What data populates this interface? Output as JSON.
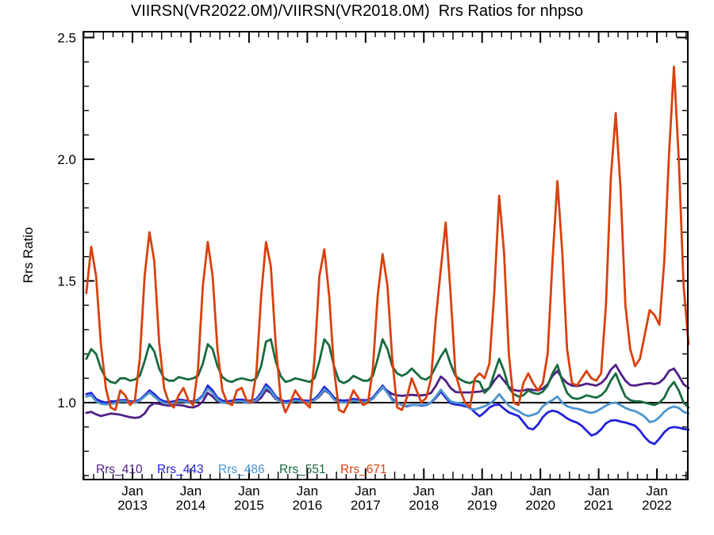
{
  "chart_data": {
    "type": "line",
    "title": "VIIRSN(VR2022.0M)/VIIRSN(VR2018.0M)  Rrs Ratios for nhpso",
    "ylabel": "Rrs Ratio",
    "xlabel": "",
    "background_color": "#ffffff",
    "axis_color": "#000000",
    "reference_line_y": 1.0,
    "xlim": [
      2012.156,
      2022.53
    ],
    "ylim": [
      0.684,
      2.524
    ],
    "y_ticks": [
      1.0,
      1.5,
      2.0,
      2.5
    ],
    "y_tick_labels": [
      "1.0",
      "1.5",
      "2.0",
      "2.5"
    ],
    "y_minor_step": 0.1,
    "x_ticks": [
      {
        "month": "Jan",
        "year": "2013",
        "t": 2013
      },
      {
        "month": "Jan",
        "year": "2014",
        "t": 2014
      },
      {
        "month": "Jan",
        "year": "2015",
        "t": 2015
      },
      {
        "month": "Jan",
        "year": "2016",
        "t": 2016
      },
      {
        "month": "Jan",
        "year": "2017",
        "t": 2017
      },
      {
        "month": "Jan",
        "year": "2018",
        "t": 2018
      },
      {
        "month": "Jan",
        "year": "2019",
        "t": 2019
      },
      {
        "month": "Jan",
        "year": "2020",
        "t": 2020
      },
      {
        "month": "Jan",
        "year": "2021",
        "t": 2021
      },
      {
        "month": "Jan",
        "year": "2022",
        "t": 2022
      }
    ],
    "legend": {
      "position": "bottom-left-inside",
      "labels": [
        "Rrs_410",
        "Rrs_443",
        "Rrs_486",
        "Rrs_551",
        "Rrs_671"
      ]
    },
    "x": [
      2012.208,
      2012.292,
      2012.375,
      2012.458,
      2012.542,
      2012.625,
      2012.708,
      2012.792,
      2012.875,
      2012.958,
      2013.042,
      2013.125,
      2013.208,
      2013.292,
      2013.375,
      2013.458,
      2013.542,
      2013.625,
      2013.708,
      2013.792,
      2013.875,
      2013.958,
      2014.042,
      2014.125,
      2014.208,
      2014.292,
      2014.375,
      2014.458,
      2014.542,
      2014.625,
      2014.708,
      2014.792,
      2014.875,
      2014.958,
      2015.042,
      2015.125,
      2015.208,
      2015.292,
      2015.375,
      2015.458,
      2015.542,
      2015.625,
      2015.708,
      2015.792,
      2015.875,
      2015.958,
      2016.042,
      2016.125,
      2016.208,
      2016.292,
      2016.375,
      2016.458,
      2016.542,
      2016.625,
      2016.708,
      2016.792,
      2016.875,
      2016.958,
      2017.042,
      2017.125,
      2017.208,
      2017.292,
      2017.375,
      2017.458,
      2017.542,
      2017.625,
      2017.708,
      2017.792,
      2017.875,
      2017.958,
      2018.042,
      2018.125,
      2018.208,
      2018.292,
      2018.375,
      2018.458,
      2018.542,
      2018.625,
      2018.708,
      2018.792,
      2018.875,
      2018.958,
      2019.042,
      2019.125,
      2019.208,
      2019.292,
      2019.375,
      2019.458,
      2019.542,
      2019.625,
      2019.708,
      2019.792,
      2019.875,
      2019.958,
      2020.042,
      2020.125,
      2020.208,
      2020.292,
      2020.375,
      2020.458,
      2020.542,
      2020.625,
      2020.708,
      2020.792,
      2020.875,
      2020.958,
      2021.042,
      2021.125,
      2021.208,
      2021.292,
      2021.375,
      2021.458,
      2021.542,
      2021.625,
      2021.708,
      2021.792,
      2021.875,
      2021.958,
      2022.042,
      2022.125,
      2022.208,
      2022.292,
      2022.375,
      2022.458,
      2022.542
    ],
    "series": [
      {
        "name": "Rrs_410",
        "color": "#4f2086",
        "values": [
          0.958,
          0.962,
          0.952,
          0.945,
          0.95,
          0.955,
          0.953,
          0.95,
          0.945,
          0.94,
          0.937,
          0.94,
          0.955,
          0.985,
          0.998,
          0.995,
          0.99,
          0.988,
          0.99,
          0.99,
          0.988,
          0.982,
          0.98,
          0.988,
          1.005,
          1.04,
          1.025,
          1.005,
          1.0,
          1.0,
          1.002,
          1.005,
          1.005,
          1.0,
          1.0,
          1.005,
          1.02,
          1.052,
          1.04,
          1.015,
          1.005,
          1.002,
          1.005,
          1.008,
          1.006,
          1.004,
          1.005,
          1.01,
          1.025,
          1.05,
          1.038,
          1.018,
          1.01,
          1.008,
          1.01,
          1.012,
          1.01,
          1.008,
          1.01,
          1.018,
          1.04,
          1.062,
          1.048,
          1.035,
          1.03,
          1.028,
          1.03,
          1.032,
          1.03,
          1.03,
          1.032,
          1.04,
          1.07,
          1.107,
          1.09,
          1.06,
          1.044,
          1.042,
          1.042,
          1.042,
          1.044,
          1.045,
          1.05,
          1.06,
          1.09,
          1.114,
          1.09,
          1.065,
          1.052,
          1.048,
          1.05,
          1.055,
          1.052,
          1.05,
          1.058,
          1.075,
          1.11,
          1.13,
          1.1,
          1.08,
          1.07,
          1.068,
          1.072,
          1.078,
          1.074,
          1.07,
          1.08,
          1.1,
          1.135,
          1.155,
          1.12,
          1.09,
          1.072,
          1.07,
          1.074,
          1.078,
          1.08,
          1.076,
          1.082,
          1.1,
          1.13,
          1.14,
          1.11,
          1.075,
          1.06
        ]
      },
      {
        "name": "Rrs_443",
        "color": "#2222dd",
        "values": [
          1.035,
          1.04,
          1.015,
          1.005,
          1.0,
          1.005,
          1.005,
          1.01,
          1.01,
          1.005,
          1.005,
          1.012,
          1.03,
          1.05,
          1.035,
          1.015,
          1.005,
          1.002,
          1.005,
          1.012,
          1.01,
          1.005,
          1.005,
          1.012,
          1.03,
          1.07,
          1.05,
          1.02,
          1.008,
          1.005,
          1.008,
          1.012,
          1.012,
          1.008,
          1.008,
          1.015,
          1.04,
          1.075,
          1.055,
          1.025,
          1.01,
          1.005,
          1.008,
          1.015,
          1.012,
          1.008,
          1.008,
          1.015,
          1.035,
          1.065,
          1.045,
          1.02,
          1.01,
          1.008,
          1.01,
          1.015,
          1.012,
          1.01,
          1.01,
          1.02,
          1.045,
          1.07,
          1.045,
          1.015,
          1.0,
          0.99,
          0.985,
          0.99,
          0.99,
          0.988,
          0.99,
          1.0,
          1.02,
          1.045,
          1.02,
          0.998,
          0.992,
          0.99,
          0.985,
          0.98,
          0.96,
          0.944,
          0.96,
          0.98,
          0.99,
          0.992,
          0.975,
          0.96,
          0.952,
          0.945,
          0.92,
          0.895,
          0.89,
          0.91,
          0.94,
          0.96,
          0.967,
          0.962,
          0.95,
          0.935,
          0.925,
          0.918,
          0.905,
          0.885,
          0.865,
          0.872,
          0.89,
          0.915,
          0.926,
          0.928,
          0.922,
          0.918,
          0.912,
          0.905,
          0.885,
          0.858,
          0.838,
          0.83,
          0.852,
          0.878,
          0.895,
          0.9,
          0.897,
          0.892,
          0.889
        ]
      },
      {
        "name": "Rrs_486",
        "color": "#4d94cc",
        "values": [
          1.025,
          1.03,
          1.005,
          0.995,
          0.992,
          0.995,
          0.998,
          1.005,
          1.005,
          1.0,
          1.0,
          1.008,
          1.025,
          1.042,
          1.025,
          1.008,
          0.998,
          0.995,
          0.998,
          1.005,
          1.005,
          1.0,
          1.0,
          1.008,
          1.025,
          1.058,
          1.04,
          1.012,
          1.0,
          0.998,
          1.0,
          1.005,
          1.005,
          1.002,
          1.002,
          1.01,
          1.032,
          1.065,
          1.048,
          1.018,
          1.002,
          0.998,
          1.0,
          1.008,
          1.005,
          1.002,
          1.002,
          1.01,
          1.028,
          1.055,
          1.038,
          1.012,
          1.002,
          1.0,
          1.002,
          1.008,
          1.005,
          1.002,
          1.005,
          1.015,
          1.04,
          1.065,
          1.04,
          1.01,
          0.998,
          0.99,
          0.988,
          0.99,
          0.99,
          0.99,
          0.992,
          1.002,
          1.025,
          1.053,
          1.028,
          1.005,
          1.0,
          0.998,
          0.992,
          0.975,
          0.972,
          0.978,
          0.985,
          0.995,
          1.01,
          1.035,
          1.01,
          0.988,
          0.975,
          0.965,
          0.952,
          0.945,
          0.95,
          0.958,
          0.985,
          1.0,
          1.01,
          1.025,
          1.0,
          0.985,
          0.978,
          0.975,
          0.97,
          0.962,
          0.958,
          0.963,
          0.975,
          0.988,
          0.998,
          1.0,
          0.99,
          0.978,
          0.97,
          0.965,
          0.955,
          0.942,
          0.92,
          0.924,
          0.94,
          0.962,
          0.977,
          0.984,
          0.978,
          0.962,
          0.955
        ]
      },
      {
        "name": "Rrs_551",
        "color": "#176b3e",
        "values": [
          1.18,
          1.22,
          1.2,
          1.14,
          1.1,
          1.085,
          1.08,
          1.1,
          1.1,
          1.09,
          1.095,
          1.11,
          1.17,
          1.24,
          1.21,
          1.14,
          1.1,
          1.09,
          1.09,
          1.105,
          1.1,
          1.095,
          1.1,
          1.11,
          1.16,
          1.24,
          1.22,
          1.15,
          1.105,
          1.09,
          1.085,
          1.095,
          1.1,
          1.095,
          1.09,
          1.1,
          1.15,
          1.25,
          1.26,
          1.17,
          1.11,
          1.085,
          1.09,
          1.1,
          1.095,
          1.09,
          1.085,
          1.1,
          1.17,
          1.26,
          1.235,
          1.15,
          1.09,
          1.08,
          1.09,
          1.11,
          1.1,
          1.09,
          1.09,
          1.11,
          1.18,
          1.26,
          1.22,
          1.15,
          1.12,
          1.11,
          1.12,
          1.14,
          1.12,
          1.1,
          1.095,
          1.11,
          1.15,
          1.19,
          1.22,
          1.16,
          1.11,
          1.095,
          1.085,
          1.08,
          1.09,
          1.085,
          1.04,
          1.06,
          1.12,
          1.18,
          1.13,
          1.06,
          1.035,
          1.025,
          1.03,
          1.05,
          1.04,
          1.035,
          1.045,
          1.07,
          1.12,
          1.155,
          1.09,
          1.04,
          1.02,
          1.015,
          1.02,
          1.03,
          1.025,
          1.02,
          1.03,
          1.05,
          1.09,
          1.12,
          1.07,
          1.025,
          1.01,
          1.005,
          1.005,
          1.0,
          0.995,
          0.99,
          1.0,
          1.02,
          1.06,
          1.085,
          1.05,
          1.0,
          0.98
        ]
      },
      {
        "name": "Rrs_671",
        "color": "#d8410e",
        "values": [
          1.45,
          1.64,
          1.52,
          1.24,
          1.06,
          0.98,
          0.97,
          1.05,
          1.03,
          0.99,
          1.01,
          1.18,
          1.52,
          1.7,
          1.58,
          1.25,
          1.06,
          1.0,
          0.98,
          1.03,
          1.06,
          1.01,
          0.99,
          1.14,
          1.48,
          1.66,
          1.52,
          1.22,
          1.05,
          1.0,
          0.99,
          1.05,
          1.06,
          1.01,
          1.0,
          1.12,
          1.44,
          1.66,
          1.56,
          1.24,
          1.02,
          0.96,
          1.0,
          1.05,
          1.02,
          1.0,
          0.98,
          1.18,
          1.52,
          1.63,
          1.44,
          1.14,
          0.97,
          0.96,
          1.0,
          1.05,
          1.02,
          0.99,
          1.0,
          1.14,
          1.44,
          1.61,
          1.48,
          1.18,
          0.98,
          0.97,
          1.02,
          1.1,
          1.05,
          1.0,
          1.02,
          1.1,
          1.35,
          1.55,
          1.74,
          1.45,
          1.12,
          1.05,
          1.0,
          0.98,
          1.1,
          1.12,
          1.1,
          1.16,
          1.45,
          1.85,
          1.62,
          1.2,
          1.0,
          0.99,
          1.08,
          1.12,
          1.08,
          1.05,
          1.08,
          1.2,
          1.58,
          1.91,
          1.62,
          1.22,
          1.08,
          1.07,
          1.1,
          1.13,
          1.1,
          1.09,
          1.12,
          1.4,
          1.92,
          2.19,
          1.88,
          1.4,
          1.22,
          1.15,
          1.18,
          1.28,
          1.38,
          1.36,
          1.32,
          1.58,
          2.02,
          2.38,
          2.0,
          1.48,
          1.24
        ]
      }
    ]
  }
}
